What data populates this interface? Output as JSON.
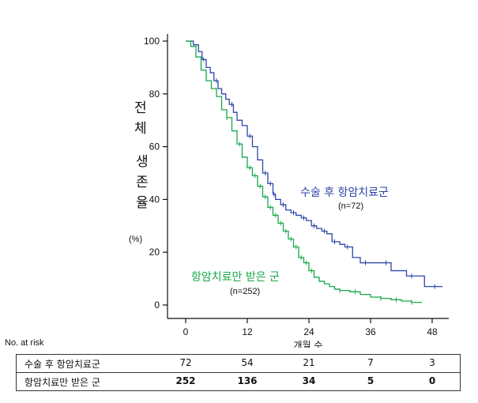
{
  "chart_data": {
    "type": "line",
    "xlabel": "개월 수",
    "ylabel": "전체 생존율",
    "ylabel_lines": [
      "전",
      "체",
      "생",
      "존",
      "율"
    ],
    "ylabel_unit": "(%)",
    "xlim": [
      -3,
      50
    ],
    "ylim": [
      -3,
      103
    ],
    "x_ticks": [
      0,
      12,
      24,
      36,
      48
    ],
    "y_ticks": [
      0,
      20,
      40,
      60,
      80,
      100
    ],
    "series": [
      {
        "name": "수술 후 항암치료군",
        "n_label": "(n=72)",
        "color": "#2e46a8",
        "x": [
          0,
          1.5,
          2.5,
          3.2,
          4.0,
          4.8,
          5.5,
          6.3,
          7.0,
          7.8,
          8.5,
          9.3,
          10.0,
          11.0,
          12.0,
          13.0,
          14.0,
          15.0,
          16.0,
          17.0,
          17.5,
          18.5,
          19.5,
          20.5,
          21.5,
          22.5,
          23.5,
          24.5,
          25.5,
          26.5,
          27.5,
          28.5,
          30.0,
          31.0,
          32.5,
          34.0,
          36.0,
          37.5,
          40.0,
          43.0,
          45.0,
          46.5,
          50.0
        ],
        "y": [
          100,
          98.6,
          96,
          93,
          90,
          88,
          85,
          82,
          80,
          78,
          76,
          73,
          70,
          68,
          64,
          60,
          55,
          50,
          46,
          42,
          40,
          38,
          36,
          35,
          34,
          33,
          32,
          30,
          29,
          28,
          27,
          24,
          23,
          22,
          18,
          16,
          16,
          16,
          13,
          11,
          11,
          7,
          7
        ],
        "censor_x": [
          3.5,
          6.0,
          9.0,
          12.5,
          15.5,
          16.5,
          17.2,
          19.0,
          21.0,
          23.0,
          25.0,
          27.0,
          29.0,
          31.5,
          35.0,
          39.0,
          44.0,
          48.5
        ],
        "censor_y": [
          93,
          85,
          76,
          64,
          50,
          46,
          42,
          38,
          35,
          33,
          30,
          28,
          24,
          22,
          16,
          16,
          11,
          7
        ]
      },
      {
        "name": "항암치료만 받은 군",
        "n_label": "(n=252)",
        "color": "#18a84a",
        "x": [
          0,
          1.0,
          2.0,
          3.0,
          4.0,
          5.0,
          6.0,
          7.0,
          8.0,
          9.0,
          10.0,
          11.0,
          12.0,
          13.0,
          14.0,
          15.0,
          16.0,
          17.0,
          18.0,
          19.0,
          20.0,
          21.0,
          22.0,
          23.0,
          24.0,
          25.0,
          26.0,
          27.0,
          28.0,
          29.0,
          30.0,
          32.0,
          34.0,
          36.0,
          38.0,
          40.0,
          42.0,
          44.0,
          46.0
        ],
        "y": [
          100,
          98,
          94,
          89,
          85,
          82,
          79,
          74,
          71,
          66,
          61,
          56,
          52,
          49,
          45,
          41,
          37,
          34,
          31,
          28,
          25,
          22,
          18,
          16,
          13,
          10.5,
          9,
          8,
          7,
          6,
          5.5,
          5,
          4,
          3,
          2.5,
          2,
          1.5,
          1,
          1
        ],
        "censor_x": [
          8.0,
          10.5,
          12.5,
          13.5,
          14.5,
          15.5,
          16.5,
          17.5,
          18.5,
          19.5,
          20.5,
          21.5,
          22.5,
          23.5,
          24.5,
          30.0,
          33.0,
          38.0,
          41.0,
          44.0
        ],
        "censor_y": [
          71,
          61,
          52,
          49,
          45,
          41,
          37,
          34,
          31,
          28,
          25,
          22,
          18,
          16,
          13,
          5.5,
          5,
          2.5,
          2,
          1
        ]
      }
    ],
    "at_risk": {
      "title": "No. at risk",
      "times": [
        0,
        12,
        24,
        36,
        48
      ],
      "rows": [
        {
          "label": "수술 후 항암치료군",
          "values": [
            "72",
            "54",
            "21",
            "7",
            "3"
          ],
          "bold": false
        },
        {
          "label": "항암치료만 받은 군",
          "values": [
            "252",
            "136",
            "34",
            "5",
            "0"
          ],
          "bold": true
        }
      ]
    }
  }
}
